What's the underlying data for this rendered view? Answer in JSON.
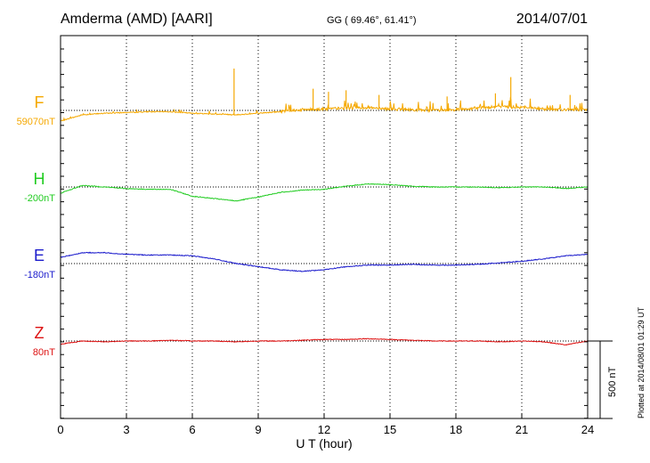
{
  "header": {
    "station": "Amderma (AMD)  [AARI]",
    "coords": "GG ( 69.46°,  61.41°)",
    "date": "2014/07/01"
  },
  "footer": {
    "plotted": "Plotted at 2014/08/01 01:29 UT"
  },
  "chart_data": {
    "type": "line",
    "xlabel": "U T (hour)",
    "xlim": [
      0,
      24
    ],
    "x_ticks": [
      "0",
      "3",
      "6",
      "9",
      "12",
      "15",
      "18",
      "21",
      "24"
    ],
    "grid": "dotted vertical every 3 hours, dotted baseline per component",
    "scale_bar": {
      "label": "500 nT",
      "value_nT": 500
    },
    "series": [
      {
        "name": "F",
        "baseline": "59070nT",
        "color": "#f5a800",
        "x": [
          0,
          1,
          2,
          3,
          4,
          5,
          6,
          7,
          8,
          9,
          10,
          11,
          12,
          13,
          14,
          15,
          16,
          17,
          18,
          19,
          20,
          21,
          22,
          23,
          24
        ],
        "y": [
          -70,
          -30,
          -20,
          -15,
          -10,
          -10,
          -20,
          -25,
          -30,
          -20,
          -10,
          0,
          5,
          10,
          15,
          5,
          0,
          -5,
          0,
          10,
          20,
          15,
          5,
          0,
          0
        ],
        "spikes": [
          {
            "x": 7.9,
            "y": 270
          },
          {
            "x": 11.5,
            "y": 140
          },
          {
            "x": 12.2,
            "y": 120
          },
          {
            "x": 13.0,
            "y": 130
          },
          {
            "x": 14.5,
            "y": 100
          },
          {
            "x": 17.6,
            "y": 90
          },
          {
            "x": 19.8,
            "y": 110
          },
          {
            "x": 20.5,
            "y": 215
          },
          {
            "x": 23.2,
            "y": 100
          }
        ]
      },
      {
        "name": "H",
        "baseline": "-200nT",
        "color": "#22cc22",
        "x": [
          0,
          1,
          2,
          3,
          4,
          5,
          6,
          7,
          8,
          9,
          10,
          11,
          12,
          13,
          14,
          15,
          16,
          17,
          18,
          19,
          20,
          21,
          22,
          23,
          24
        ],
        "y": [
          -40,
          10,
          0,
          -10,
          -15,
          -15,
          -60,
          -75,
          -90,
          -65,
          -35,
          -20,
          -15,
          5,
          20,
          15,
          5,
          0,
          0,
          0,
          -5,
          0,
          0,
          -10,
          0
        ]
      },
      {
        "name": "E",
        "baseline": "-180nT",
        "color": "#1a1acc",
        "x": [
          0,
          1,
          2,
          3,
          4,
          5,
          6,
          7,
          8,
          9,
          10,
          11,
          12,
          13,
          14,
          15,
          16,
          17,
          18,
          19,
          20,
          21,
          22,
          23,
          24
        ],
        "y": [
          40,
          70,
          70,
          60,
          55,
          55,
          50,
          30,
          0,
          -20,
          -40,
          -50,
          -40,
          -20,
          -10,
          -10,
          -5,
          -10,
          -10,
          -5,
          5,
          15,
          30,
          50,
          60
        ]
      },
      {
        "name": "Z",
        "baseline": "80nT",
        "color": "#dd1111",
        "x": [
          0,
          1,
          2,
          3,
          4,
          5,
          6,
          7,
          8,
          9,
          10,
          11,
          12,
          13,
          14,
          15,
          16,
          17,
          18,
          19,
          20,
          21,
          22,
          23,
          24
        ],
        "y": [
          -20,
          0,
          -5,
          0,
          0,
          5,
          0,
          0,
          -5,
          0,
          0,
          5,
          10,
          10,
          15,
          10,
          5,
          0,
          0,
          0,
          -5,
          0,
          -5,
          -25,
          0
        ]
      }
    ]
  }
}
